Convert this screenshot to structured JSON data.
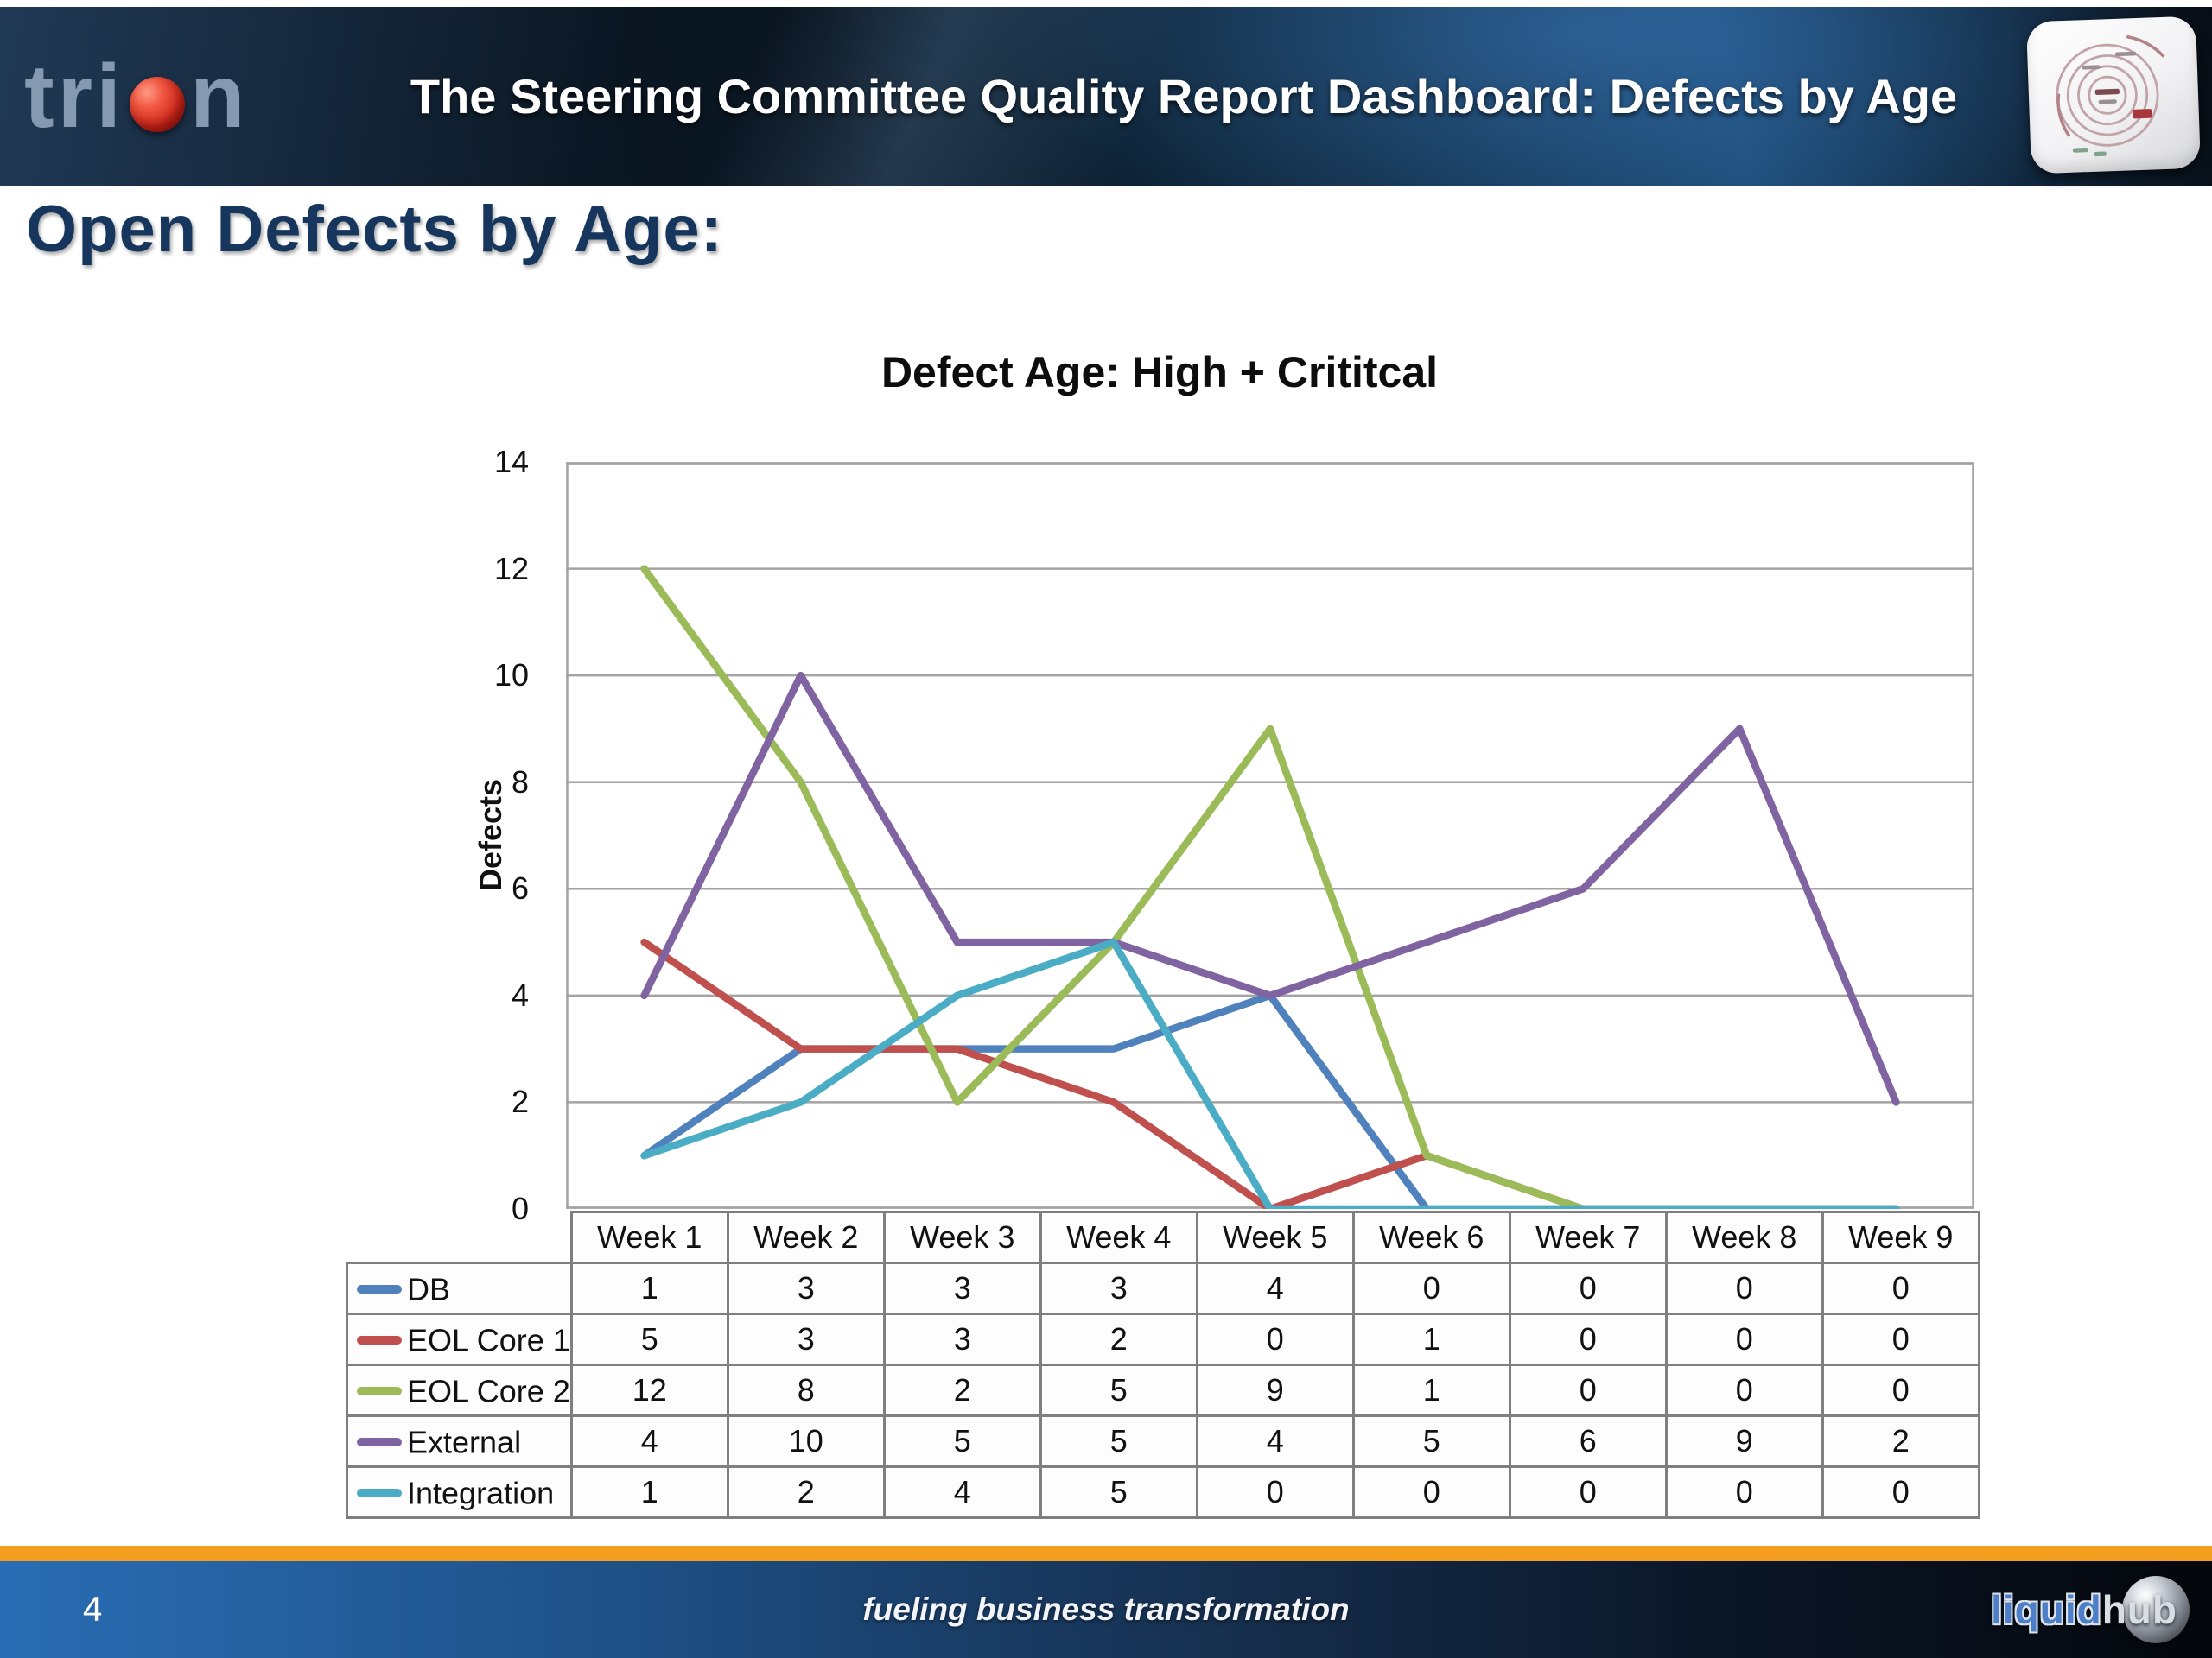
{
  "banner": {
    "logo_prefix": "tri",
    "logo_suffix": "n",
    "title": "The Steering Committee Quality Report Dashboard: Defects by Age"
  },
  "page_heading": "Open Defects by Age:",
  "chart_data": {
    "type": "line",
    "title": "Defect Age: High + Crititcal",
    "xlabel": "",
    "ylabel": "Defects",
    "ylim": [
      0,
      14
    ],
    "ytick_step": 2,
    "grid": true,
    "legend_position": "table-left",
    "categories": [
      "Week 1",
      "Week 2",
      "Week 3",
      "Week 4",
      "Week 5",
      "Week 6",
      "Week 7",
      "Week 8",
      "Week 9"
    ],
    "series": [
      {
        "name": "DB",
        "color": "#4F81BD",
        "values": [
          1,
          3,
          3,
          3,
          4,
          0,
          0,
          0,
          0
        ]
      },
      {
        "name": "EOL Core 1",
        "color": "#C0504D",
        "values": [
          5,
          3,
          3,
          2,
          0,
          1,
          0,
          0,
          0
        ]
      },
      {
        "name": "EOL Core 2",
        "color": "#9BBB59",
        "values": [
          12,
          8,
          2,
          5,
          9,
          1,
          0,
          0,
          0
        ]
      },
      {
        "name": "External",
        "color": "#8064A2",
        "values": [
          4,
          10,
          5,
          5,
          4,
          5,
          6,
          9,
          2
        ]
      },
      {
        "name": "Integration",
        "color": "#4BACC6",
        "values": [
          1,
          2,
          4,
          5,
          0,
          0,
          0,
          0,
          0
        ]
      }
    ]
  },
  "footer": {
    "page_number": "4",
    "tagline": "fueling business transformation",
    "brand": {
      "part1": "liquid",
      "part2": "hub"
    },
    "bar_color": "#F49F1F"
  },
  "colors": {
    "heading": "#17365D",
    "gridline": "#A3A3A3",
    "table_border": "#7F7F7F",
    "footer_gradient_start": "#2A6DB4",
    "footer_gradient_end": "#04070C"
  }
}
